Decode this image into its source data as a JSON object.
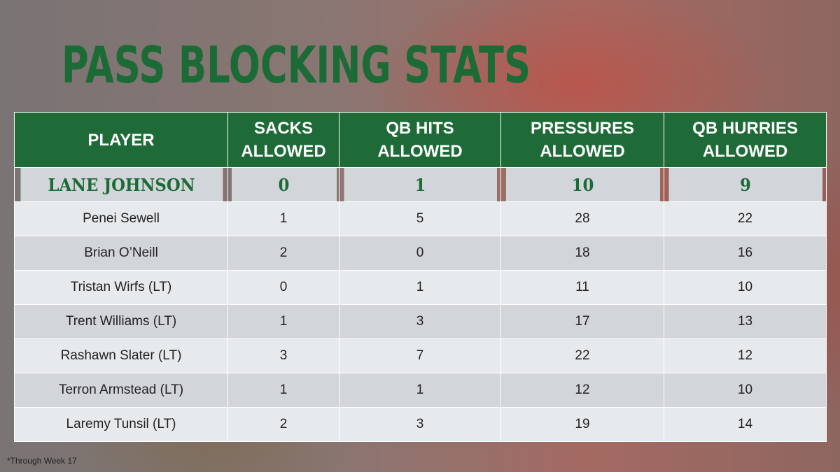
{
  "title": "PASS BLOCKING STATS",
  "table": {
    "header": [
      [
        "PLAYER"
      ],
      [
        "SACKS",
        "ALLOWED"
      ],
      [
        "QB HITS",
        "ALLOWED"
      ],
      [
        "PRESSURES",
        "ALLOWED"
      ],
      [
        "QB HURRIES",
        "ALLOWED"
      ]
    ],
    "rows": [
      [
        "LANE JOHNSON",
        0,
        1,
        10,
        9
      ],
      [
        "Penei Sewell",
        1,
        5,
        28,
        22
      ],
      [
        "Brian O’Neill",
        2,
        0,
        18,
        16
      ],
      [
        "Tristan Wirfs (LT)",
        0,
        1,
        11,
        10
      ],
      [
        "Trent Williams (LT)",
        1,
        3,
        17,
        13
      ],
      [
        "Rashawn Slater (LT)",
        3,
        7,
        22,
        12
      ],
      [
        "Terron Armstead (LT)",
        1,
        1,
        12,
        10
      ],
      [
        "Laremy Tunsil (LT)",
        2,
        3,
        19,
        14
      ]
    ]
  },
  "footnote": "*Through Week 17"
}
